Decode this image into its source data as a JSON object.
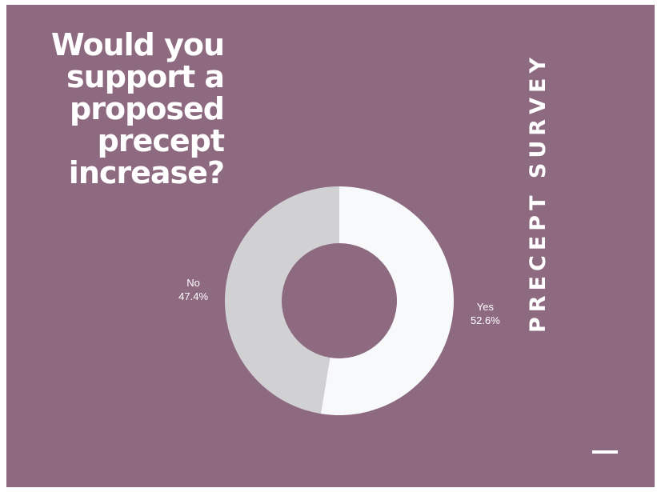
{
  "slide": {
    "question": "Would you support a proposed precept increase?",
    "side_title": "PRECEPT SURVEY"
  },
  "colors": {
    "background": "#8e6a80",
    "yes": "#f8f9fb",
    "no": "#d1d1d4",
    "text": "#ffffff"
  },
  "chart_data": {
    "type": "pie",
    "variant": "donut",
    "title": "",
    "slices": [
      {
        "label": "Yes",
        "percent_label": "52.6%",
        "value": 52.6,
        "color": "#f8f9fb"
      },
      {
        "label": "No",
        "percent_label": "47.4%",
        "value": 47.4,
        "color": "#d1d1d4"
      }
    ],
    "legend": "none"
  }
}
